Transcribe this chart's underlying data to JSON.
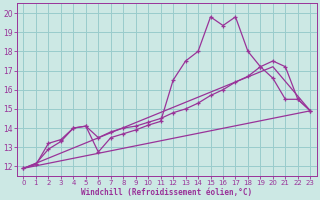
{
  "xlabel": "Windchill (Refroidissement éolien,°C)",
  "bg_color": "#cce8e4",
  "line_color": "#993399",
  "grid_color": "#99cccc",
  "xlim": [
    -0.5,
    23.5
  ],
  "ylim": [
    11.5,
    20.5
  ],
  "xticks": [
    0,
    1,
    2,
    3,
    4,
    5,
    6,
    7,
    8,
    9,
    10,
    11,
    12,
    13,
    14,
    15,
    16,
    17,
    18,
    19,
    20,
    21,
    22,
    23
  ],
  "yticks": [
    12,
    13,
    14,
    15,
    16,
    17,
    18,
    19,
    20
  ],
  "line1_x": [
    0,
    1,
    2,
    3,
    4,
    5,
    6,
    7,
    8,
    9,
    10,
    11,
    12,
    13,
    14,
    15,
    16,
    17,
    18,
    19,
    20,
    21,
    22,
    23
  ],
  "line1_y": [
    11.9,
    12.15,
    12.9,
    13.3,
    14.0,
    14.1,
    12.75,
    13.5,
    13.7,
    13.9,
    14.15,
    14.35,
    16.5,
    17.5,
    18.0,
    19.8,
    19.35,
    19.8,
    18.0,
    17.2,
    16.6,
    15.5,
    15.5,
    14.9
  ],
  "line2_x": [
    0,
    1,
    2,
    3,
    4,
    5,
    6,
    7,
    8,
    9,
    10,
    11,
    12,
    13,
    14,
    15,
    16,
    17,
    18,
    19,
    20,
    21,
    22,
    23
  ],
  "line2_y": [
    11.9,
    12.1,
    13.2,
    13.4,
    14.0,
    14.1,
    13.5,
    13.8,
    14.0,
    14.1,
    14.3,
    14.5,
    14.8,
    15.0,
    15.3,
    15.7,
    16.0,
    16.4,
    16.7,
    17.2,
    17.5,
    17.2,
    15.5,
    14.9
  ],
  "line3_x": [
    0,
    23
  ],
  "line3_y": [
    11.9,
    14.9
  ],
  "line4_x": [
    0,
    20,
    23
  ],
  "line4_y": [
    11.9,
    17.2,
    14.9
  ]
}
